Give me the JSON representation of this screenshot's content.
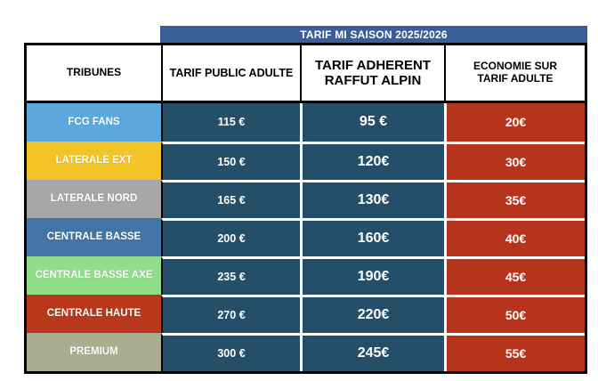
{
  "title_band": "TARIF MI SAISON 2025/2026",
  "colors": {
    "band_blue": "#3A5F98",
    "price_cell_teal": "#254F69",
    "economy_cell_red": "#B5341B",
    "border_black": "#000000",
    "gridline_white": "#FFFFFF",
    "header_bg": "#FFFFFF",
    "header_text": "#000000"
  },
  "table": {
    "columns": [
      "TRIBUNES",
      "TARIF PUBLIC ADULTE",
      "TARIF ADHERENT RAFFUT ALPIN",
      "ECONOMIE SUR TARIF ADULTE"
    ],
    "rows": [
      {
        "tribune": "FCG FANS",
        "tribune_color": "#5BA9DC",
        "tarif_public": "115 €",
        "tarif_adherent": "95 €",
        "economie": "20€"
      },
      {
        "tribune": "LATERALE EXT",
        "tribune_color": "#F2C427",
        "tarif_public": "150 €",
        "tarif_adherent": "120€",
        "economie": "30€"
      },
      {
        "tribune": "LATERALE NORD",
        "tribune_color": "#A6A6A6",
        "tarif_public": "165 €",
        "tarif_adherent": "130€",
        "economie": "35€"
      },
      {
        "tribune": "CENTRALE BASSE",
        "tribune_color": "#4075A6",
        "tarif_public": "200 €",
        "tarif_adherent": "160€",
        "economie": "40€"
      },
      {
        "tribune": "CENTRALE BASSE AXE",
        "tribune_color": "#90DE88",
        "tarif_public": "235 €",
        "tarif_adherent": "190€",
        "economie": "45€"
      },
      {
        "tribune": "CENTRALE HAUTE",
        "tribune_color": "#B9371A",
        "tarif_public": "270 €",
        "tarif_adherent": "220€",
        "economie": "50€"
      },
      {
        "tribune": "PREMIUM",
        "tribune_color": "#A9AE92",
        "tarif_public": "300 €",
        "tarif_adherent": "245€",
        "economie": "55€"
      }
    ]
  },
  "chart_data": {
    "type": "table",
    "title": "TARIF MI SAISON 2025/2026",
    "columns": [
      "TRIBUNES",
      "TARIF PUBLIC ADULTE",
      "TARIF ADHERENT RAFFUT ALPIN",
      "ECONOMIE SUR TARIF ADULTE"
    ],
    "rows": [
      [
        "FCG FANS",
        "115 €",
        "95 €",
        "20€"
      ],
      [
        "LATERALE EXT",
        "150 €",
        "120€",
        "30€"
      ],
      [
        "LATERALE NORD",
        "165 €",
        "130€",
        "35€"
      ],
      [
        "CENTRALE BASSE",
        "200 €",
        "160€",
        "40€"
      ],
      [
        "CENTRALE BASSE AXE",
        "235 €",
        "190€",
        "45€"
      ],
      [
        "CENTRALE HAUTE",
        "270 €",
        "220€",
        "50€"
      ],
      [
        "PREMIUM",
        "300 €",
        "245€",
        "55€"
      ]
    ]
  }
}
